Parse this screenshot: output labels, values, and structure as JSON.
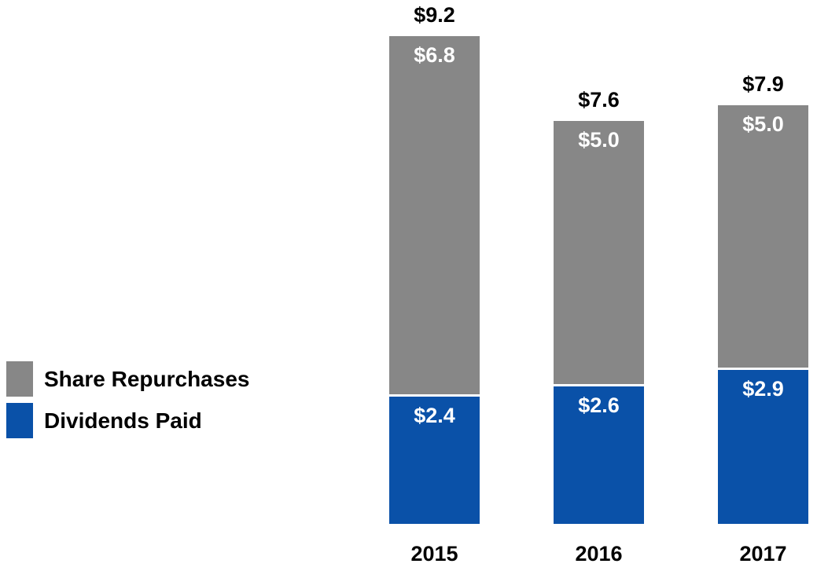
{
  "chart_data": {
    "type": "bar",
    "stacked": true,
    "categories": [
      "2015",
      "2016",
      "2017"
    ],
    "series": [
      {
        "name": "Dividends Paid",
        "color": "#0a51a8",
        "values": [
          2.4,
          2.6,
          2.9
        ],
        "labels": [
          "$2.4",
          "$2.6",
          "$2.9"
        ]
      },
      {
        "name": "Share Repurchases",
        "color": "#878787",
        "values": [
          6.8,
          5.0,
          5.0
        ],
        "labels": [
          "$6.8",
          "$5.0",
          "$5.0"
        ]
      }
    ],
    "totals": [
      9.2,
      7.6,
      7.9
    ],
    "total_labels": [
      "$9.2",
      "$7.6",
      "$7.9"
    ],
    "title": "",
    "xlabel": "",
    "ylabel": "",
    "ylim": [
      0,
      9.2
    ],
    "grid": false,
    "axis_lines": false,
    "legend_position": "left"
  },
  "legend": {
    "items": [
      {
        "label": "Share Repurchases",
        "color": "#878787"
      },
      {
        "label": "Dividends Paid",
        "color": "#0a51a8"
      }
    ]
  },
  "colors": {
    "background": "#ffffff",
    "label_text": "#000000",
    "segment_label_text": "#ffffff",
    "segment_separator": "#ffffff"
  }
}
